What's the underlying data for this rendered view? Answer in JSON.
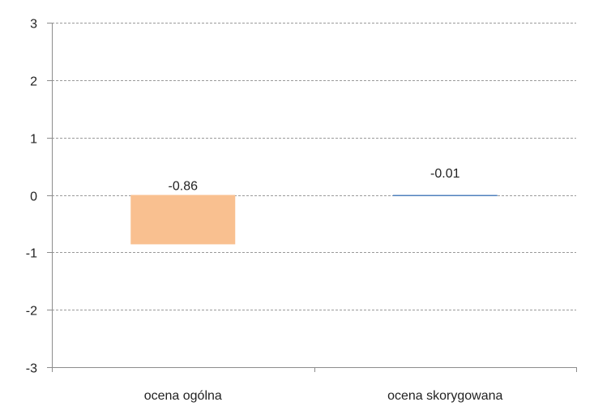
{
  "chart_data": {
    "type": "bar",
    "categories": [
      "ocena ogólna",
      "ocena skorygowana"
    ],
    "values": [
      -0.86,
      -0.01
    ],
    "data_labels": [
      "-0.86",
      "-0.01"
    ],
    "bar_colors": [
      "#F9C090",
      "#4F81BD"
    ],
    "ylim": [
      -3,
      3
    ],
    "yticks": [
      3,
      2,
      1,
      0,
      -1,
      -2,
      -3
    ],
    "ytick_labels": [
      "3",
      "2",
      "1",
      "0",
      "-1",
      "-2",
      "-3"
    ],
    "grid": true,
    "grid_style": "dashed",
    "legend": "none",
    "title": "",
    "xlabel": "",
    "ylabel": ""
  }
}
